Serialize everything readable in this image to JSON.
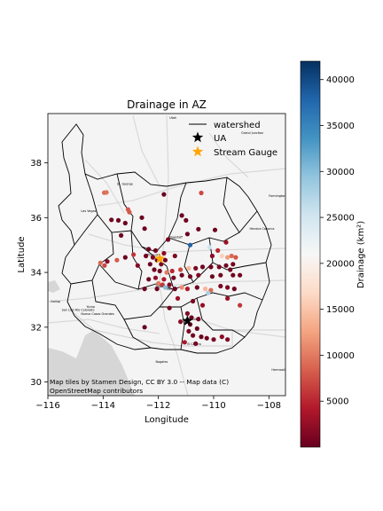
{
  "title": "Drainage in AZ",
  "xlabel": "Longitude",
  "ylabel": "Latitude",
  "attribution": [
    "Map tiles by Stamen Design, CC BY 3.0 -- Map data (C)",
    "OpenStreetMap contributors"
  ],
  "legend": {
    "entries": [
      {
        "label": "watershed",
        "icon": "black-line"
      },
      {
        "label": "UA",
        "icon": "black-star"
      },
      {
        "label": "Stream Gauge",
        "icon": "orange-star"
      }
    ]
  },
  "colorbar": {
    "label": "Drainage (km²)",
    "min": 0,
    "max": 42000,
    "ticks": [
      5000,
      10000,
      15000,
      20000,
      25000,
      30000,
      35000,
      40000
    ],
    "tick_labels": [
      "5000",
      "10000",
      "15000",
      "20000",
      "25000",
      "30000",
      "35000",
      "40000"
    ],
    "colormap": "RdBu",
    "colormap_colors": [
      "#67001f",
      "#b2182b",
      "#d6604d",
      "#f4a582",
      "#fddbc7",
      "#f7f7f7",
      "#d1e5f0",
      "#92c5de",
      "#4393c3",
      "#2166ac",
      "#053061"
    ]
  },
  "basemap_labels": [
    "Utah",
    "Grand Junction",
    "St. George",
    "Farmington",
    "Las Vegas",
    "Flagstaff",
    "Prescott",
    "Phoenix",
    "Mesa",
    "Tucson",
    "Yuma",
    "San Luis Río Colorado",
    "El Centro",
    "Mexicali",
    "Nogales",
    "Hermosillo",
    "Heroica Caborca",
    "Nuevo Casas Grandes",
    "Gallup"
  ],
  "chart_data": {
    "type": "scatter",
    "xlim": [
      -116,
      -107.4
    ],
    "ylim": [
      29.5,
      39.8
    ],
    "xticks": [
      -116,
      -114,
      -112,
      -110,
      -108
    ],
    "xtick_labels": [
      "−116",
      "−114",
      "−112",
      "−110",
      "−108"
    ],
    "yticks": [
      30,
      32,
      34,
      36,
      38
    ],
    "ytick_labels": [
      "30",
      "32",
      "34",
      "36",
      "38"
    ],
    "grid": false,
    "legend_position": "top-right",
    "ua": {
      "lon": -110.95,
      "lat": 32.23
    },
    "stream_gauge": {
      "lon": -111.95,
      "lat": 34.5
    },
    "points": [
      {
        "lon": -113.96,
        "lat": 36.91,
        "v": 9000
      },
      {
        "lon": -113.88,
        "lat": 36.92,
        "v": 9500
      },
      {
        "lon": -113.1,
        "lat": 36.3,
        "v": 8000
      },
      {
        "lon": -113.05,
        "lat": 36.2,
        "v": 8000
      },
      {
        "lon": -111.8,
        "lat": 36.85,
        "v": 300
      },
      {
        "lon": -110.45,
        "lat": 36.9,
        "v": 7000
      },
      {
        "lon": -113.7,
        "lat": 35.92,
        "v": 500
      },
      {
        "lon": -113.45,
        "lat": 35.9,
        "v": 300
      },
      {
        "lon": -112.6,
        "lat": 36.0,
        "v": 200
      },
      {
        "lon": -111.15,
        "lat": 36.08,
        "v": 200
      },
      {
        "lon": -111.0,
        "lat": 35.9,
        "v": 300
      },
      {
        "lon": -113.2,
        "lat": 35.8,
        "v": 300
      },
      {
        "lon": -112.5,
        "lat": 35.6,
        "v": 400
      },
      {
        "lon": -113.35,
        "lat": 35.35,
        "v": 500
      },
      {
        "lon": -110.95,
        "lat": 35.4,
        "v": 200
      },
      {
        "lon": -110.55,
        "lat": 35.58,
        "v": 300
      },
      {
        "lon": -109.95,
        "lat": 35.55,
        "v": 400
      },
      {
        "lon": -110.35,
        "lat": 34.95,
        "v": 22000
      },
      {
        "lon": -110.15,
        "lat": 34.92,
        "v": 25500
      },
      {
        "lon": -110.85,
        "lat": 35.0,
        "v": 38000
      },
      {
        "lon": -109.55,
        "lat": 35.1,
        "v": 3000
      },
      {
        "lon": -111.65,
        "lat": 35.2,
        "v": 1000
      },
      {
        "lon": -112.35,
        "lat": 34.85,
        "v": 500
      },
      {
        "lon": -112.1,
        "lat": 34.8,
        "v": 500
      },
      {
        "lon": -111.8,
        "lat": 34.7,
        "v": 2000
      },
      {
        "lon": -111.4,
        "lat": 34.6,
        "v": 1500
      },
      {
        "lon": -112.9,
        "lat": 34.65,
        "v": 6000
      },
      {
        "lon": -113.2,
        "lat": 34.55,
        "v": 300
      },
      {
        "lon": -113.5,
        "lat": 34.45,
        "v": 8000
      },
      {
        "lon": -113.85,
        "lat": 34.4,
        "v": 2000
      },
      {
        "lon": -114.1,
        "lat": 34.35,
        "v": 9000
      },
      {
        "lon": -113.95,
        "lat": 34.25,
        "v": 7000
      },
      {
        "lon": -112.45,
        "lat": 34.6,
        "v": 800
      },
      {
        "lon": -112.2,
        "lat": 34.55,
        "v": 1200
      },
      {
        "lon": -112.05,
        "lat": 34.45,
        "v": 400
      },
      {
        "lon": -111.75,
        "lat": 34.45,
        "v": 600
      },
      {
        "lon": -111.9,
        "lat": 34.3,
        "v": 1000
      },
      {
        "lon": -112.3,
        "lat": 34.3,
        "v": 300
      },
      {
        "lon": -112.75,
        "lat": 34.25,
        "v": 1500
      },
      {
        "lon": -112.15,
        "lat": 34.1,
        "v": 500
      },
      {
        "lon": -111.95,
        "lat": 34.05,
        "v": 800
      },
      {
        "lon": -111.7,
        "lat": 34.0,
        "v": 10000
      },
      {
        "lon": -111.5,
        "lat": 34.05,
        "v": 5000
      },
      {
        "lon": -111.2,
        "lat": 34.1,
        "v": 7000
      },
      {
        "lon": -110.9,
        "lat": 34.15,
        "v": 14000
      },
      {
        "lon": -110.65,
        "lat": 34.15,
        "v": 1200
      },
      {
        "lon": -110.4,
        "lat": 34.2,
        "v": 600
      },
      {
        "lon": -110.1,
        "lat": 34.2,
        "v": 400
      },
      {
        "lon": -109.8,
        "lat": 34.2,
        "v": 800
      },
      {
        "lon": -109.55,
        "lat": 34.25,
        "v": 600
      },
      {
        "lon": -109.4,
        "lat": 34.1,
        "v": 400
      },
      {
        "lon": -109.3,
        "lat": 34.3,
        "v": 700
      },
      {
        "lon": -109.2,
        "lat": 34.55,
        "v": 8000
      },
      {
        "lon": -109.35,
        "lat": 34.6,
        "v": 9000
      },
      {
        "lon": -109.5,
        "lat": 34.55,
        "v": 12000
      },
      {
        "lon": -109.7,
        "lat": 34.6,
        "v": 16000
      },
      {
        "lon": -110.05,
        "lat": 34.6,
        "v": 2000
      },
      {
        "lon": -109.85,
        "lat": 34.8,
        "v": 5000
      },
      {
        "lon": -109.3,
        "lat": 33.9,
        "v": 500
      },
      {
        "lon": -109.05,
        "lat": 33.9,
        "v": 1000
      },
      {
        "lon": -109.75,
        "lat": 33.9,
        "v": 800
      },
      {
        "lon": -110.05,
        "lat": 33.85,
        "v": 300
      },
      {
        "lon": -110.55,
        "lat": 33.9,
        "v": 1200
      },
      {
        "lon": -110.85,
        "lat": 33.85,
        "v": 600
      },
      {
        "lon": -111.15,
        "lat": 33.9,
        "v": 300
      },
      {
        "lon": -111.45,
        "lat": 33.8,
        "v": 900
      },
      {
        "lon": -111.8,
        "lat": 33.75,
        "v": 4000
      },
      {
        "lon": -112.1,
        "lat": 33.8,
        "v": 2500
      },
      {
        "lon": -112.35,
        "lat": 33.75,
        "v": 700
      },
      {
        "lon": -112.0,
        "lat": 33.6,
        "v": 10000
      },
      {
        "lon": -111.85,
        "lat": 33.55,
        "v": 6000
      },
      {
        "lon": -111.6,
        "lat": 33.55,
        "v": 1500
      },
      {
        "lon": -111.75,
        "lat": 33.45,
        "v": 30000
      },
      {
        "lon": -112.05,
        "lat": 33.4,
        "v": 200
      },
      {
        "lon": -112.5,
        "lat": 33.4,
        "v": 500
      },
      {
        "lon": -111.4,
        "lat": 33.4,
        "v": 400
      },
      {
        "lon": -111.15,
        "lat": 33.45,
        "v": 11000
      },
      {
        "lon": -110.95,
        "lat": 33.4,
        "v": 4000
      },
      {
        "lon": -110.6,
        "lat": 33.45,
        "v": 200
      },
      {
        "lon": -110.3,
        "lat": 33.4,
        "v": 14000
      },
      {
        "lon": -110.1,
        "lat": 33.35,
        "v": 9000
      },
      {
        "lon": -110.2,
        "lat": 33.25,
        "v": 28000
      },
      {
        "lon": -109.75,
        "lat": 33.5,
        "v": 1000
      },
      {
        "lon": -109.5,
        "lat": 33.45,
        "v": 1200
      },
      {
        "lon": -109.25,
        "lat": 33.4,
        "v": 500
      },
      {
        "lon": -109.05,
        "lat": 32.8,
        "v": 6000
      },
      {
        "lon": -109.5,
        "lat": 33.05,
        "v": 3000
      },
      {
        "lon": -111.3,
        "lat": 33.05,
        "v": 3000
      },
      {
        "lon": -110.75,
        "lat": 32.95,
        "v": 1000
      },
      {
        "lon": -110.4,
        "lat": 32.8,
        "v": 2500
      },
      {
        "lon": -111.6,
        "lat": 32.7,
        "v": 500
      },
      {
        "lon": -110.95,
        "lat": 32.5,
        "v": 1500
      },
      {
        "lon": -110.8,
        "lat": 32.35,
        "v": 300
      },
      {
        "lon": -110.55,
        "lat": 32.3,
        "v": 800
      },
      {
        "lon": -111.2,
        "lat": 32.2,
        "v": 2000
      },
      {
        "lon": -110.85,
        "lat": 32.1,
        "v": 400
      },
      {
        "lon": -110.6,
        "lat": 31.95,
        "v": 200
      },
      {
        "lon": -110.9,
        "lat": 31.85,
        "v": 1200
      },
      {
        "lon": -110.75,
        "lat": 31.7,
        "v": 700
      },
      {
        "lon": -110.45,
        "lat": 31.65,
        "v": 300
      },
      {
        "lon": -110.25,
        "lat": 31.6,
        "v": 500
      },
      {
        "lon": -110.0,
        "lat": 31.55,
        "v": 1000
      },
      {
        "lon": -109.7,
        "lat": 31.65,
        "v": 2000
      },
      {
        "lon": -109.5,
        "lat": 31.55,
        "v": 1500
      },
      {
        "lon": -111.05,
        "lat": 31.45,
        "v": 4000
      },
      {
        "lon": -112.5,
        "lat": 32.0,
        "v": 200
      },
      {
        "lon": -110.65,
        "lat": 31.4,
        "v": 800
      }
    ]
  }
}
